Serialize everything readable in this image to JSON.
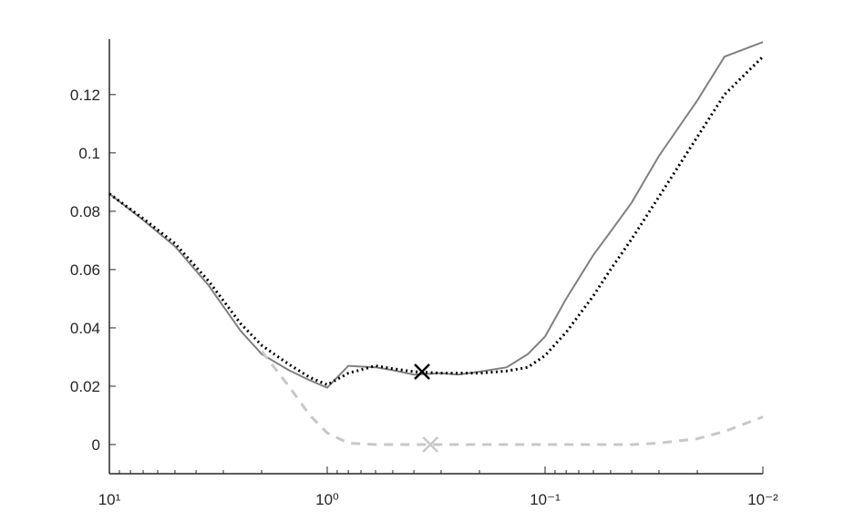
{
  "chart_data": {
    "type": "line",
    "x": [
      10,
      7,
      5,
      3.5,
      2.5,
      2,
      1.5,
      1.2,
      1,
      0.8,
      0.6,
      0.5,
      0.4,
      0.3,
      0.25,
      0.2,
      0.15,
      0.12,
      0.1,
      0.08,
      0.06,
      0.05,
      0.04,
      0.03,
      0.02,
      0.015,
      0.01
    ],
    "xscale": "log",
    "xreversed": true,
    "xlim": [
      10,
      0.01
    ],
    "xticks": [
      {
        "value": 10,
        "label": "10¹"
      },
      {
        "value": 1,
        "label": "10⁰"
      },
      {
        "value": 0.1,
        "label": "10⁻¹"
      },
      {
        "value": 0.01,
        "label": "10⁻²"
      }
    ],
    "ylim": [
      -0.01,
      0.139
    ],
    "yticks": [
      0,
      0.02,
      0.04,
      0.06,
      0.08,
      0.1,
      0.12
    ],
    "series": [
      {
        "color": "#808080",
        "style": "solid",
        "values": [
          0.086,
          0.077,
          0.068,
          0.0545,
          0.039,
          0.031,
          0.0255,
          0.022,
          0.0195,
          0.027,
          0.0265,
          0.0255,
          0.024,
          0.0245,
          0.024,
          0.025,
          0.0265,
          0.031,
          0.037,
          0.05,
          0.065,
          0.073,
          0.083,
          0.099,
          0.118,
          0.133,
          0.138
        ]
      },
      {
        "color": "#000000",
        "style": "dotted",
        "values": [
          0.086,
          0.0775,
          0.069,
          0.056,
          0.0415,
          0.034,
          0.0275,
          0.023,
          0.0205,
          0.0245,
          0.027,
          0.026,
          0.025,
          0.0245,
          0.0245,
          0.0245,
          0.0252,
          0.0265,
          0.0305,
          0.0385,
          0.051,
          0.06,
          0.0705,
          0.085,
          0.1055,
          0.12,
          0.133
        ]
      },
      {
        "color": "#c8c8c8",
        "style": "dashed",
        "values": [
          null,
          null,
          null,
          null,
          null,
          0.032,
          0.02,
          0.01,
          0.004,
          0.0005,
          0,
          0,
          0,
          0,
          0,
          0,
          0,
          0,
          0,
          0,
          0,
          0,
          0,
          0.0005,
          0.002,
          0.0045,
          0.0095
        ]
      }
    ],
    "markers": [
      {
        "x": 0.367,
        "y": 0.025,
        "color": "#000000"
      },
      {
        "x": 0.336,
        "y": 0,
        "color": "#c8c8c8"
      }
    ]
  }
}
